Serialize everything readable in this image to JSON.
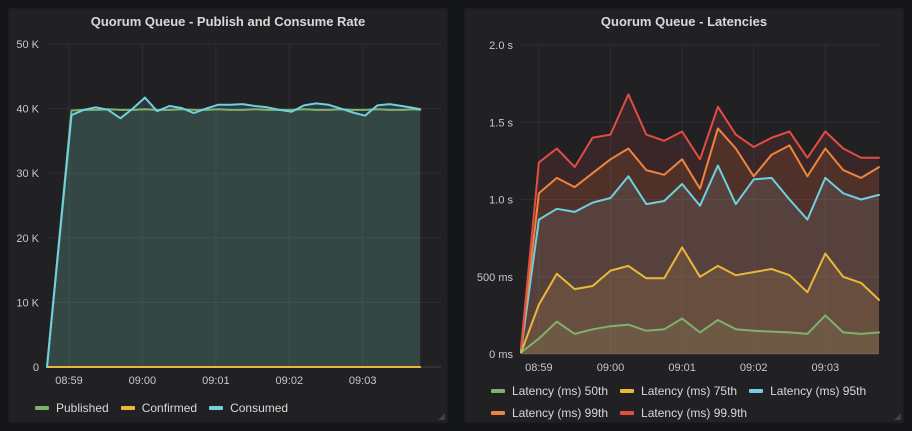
{
  "theme": {
    "page_bg": "#141619",
    "panel_bg": "#212124",
    "grid_color": "#2c2f33",
    "axis_line_color": "#3f4247",
    "axis_text_color": "#c7c8c9",
    "title_color": "#d8d9da",
    "legend_text_color": "#d8d9da"
  },
  "chart_data": [
    {
      "type": "area",
      "title": "Quorum Queue - Publish and Consume Rate",
      "legend_position": "bottom",
      "grid": true,
      "fill_opacity": 0.13,
      "x_axis_unit": "time",
      "x_seconds": [
        0,
        20,
        30,
        40,
        50,
        60,
        70,
        80,
        90,
        100,
        110,
        120,
        130,
        140,
        150,
        160,
        170,
        180,
        190,
        200,
        210,
        220,
        230,
        240,
        250,
        260,
        270,
        280,
        290,
        300,
        305
      ],
      "x_max": 322,
      "x_ticks": [
        {
          "t": 18,
          "label": "08:59"
        },
        {
          "t": 78,
          "label": "09:00"
        },
        {
          "t": 138,
          "label": "09:01"
        },
        {
          "t": 198,
          "label": "09:02"
        },
        {
          "t": 258,
          "label": "09:03"
        }
      ],
      "ylim": [
        0,
        50000
      ],
      "y_ticks": [
        {
          "v": 0,
          "label": "0"
        },
        {
          "v": 10000,
          "label": "10 K"
        },
        {
          "v": 20000,
          "label": "20 K"
        },
        {
          "v": 30000,
          "label": "30 K"
        },
        {
          "v": 40000,
          "label": "40 K"
        },
        {
          "v": 50000,
          "label": "50 K"
        }
      ],
      "series": [
        {
          "name": "Published",
          "color": "#7EB26D",
          "values": [
            0,
            39700,
            39800,
            39800,
            39900,
            39800,
            39800,
            39900,
            39800,
            39800,
            39900,
            39800,
            39800,
            39900,
            39800,
            39800,
            39900,
            39800,
            39800,
            39800,
            39900,
            39800,
            39800,
            39900,
            39800,
            39800,
            39900,
            39800,
            39800,
            39900,
            39800
          ]
        },
        {
          "name": "Confirmed",
          "color": "#EAB839",
          "values": [
            0,
            0,
            0,
            0,
            0,
            0,
            0,
            0,
            0,
            0,
            0,
            0,
            0,
            0,
            0,
            0,
            0,
            0,
            0,
            0,
            0,
            0,
            0,
            0,
            0,
            0,
            0,
            0,
            0,
            0,
            0
          ]
        },
        {
          "name": "Consumed",
          "color": "#6ED0E0",
          "values": [
            0,
            39000,
            39800,
            40200,
            39800,
            38500,
            40000,
            41700,
            39600,
            40400,
            40100,
            39300,
            40000,
            40600,
            40600,
            40700,
            40400,
            40200,
            39800,
            39500,
            40500,
            40800,
            40600,
            40000,
            39400,
            38900,
            40500,
            40700,
            40400,
            40100,
            39900
          ]
        }
      ]
    },
    {
      "type": "area",
      "title": "Quorum Queue - Latencies",
      "legend_position": "bottom",
      "grid": true,
      "fill_opacity": 0.13,
      "x_axis_unit": "time",
      "x_seconds": [
        0,
        15,
        30,
        45,
        60,
        75,
        90,
        105,
        120,
        135,
        150,
        165,
        180,
        195,
        210,
        225,
        240,
        255,
        270,
        285,
        300
      ],
      "x_max": 300,
      "x_ticks": [
        {
          "t": 15,
          "label": "08:59"
        },
        {
          "t": 75,
          "label": "09:00"
        },
        {
          "t": 135,
          "label": "09:01"
        },
        {
          "t": 195,
          "label": "09:02"
        },
        {
          "t": 255,
          "label": "09:03"
        }
      ],
      "ylim": [
        0,
        2000
      ],
      "y_ticks": [
        {
          "v": 0,
          "label": "0 ms"
        },
        {
          "v": 500,
          "label": "500 ms"
        },
        {
          "v": 1000,
          "label": "1.0 s"
        },
        {
          "v": 1500,
          "label": "1.5 s"
        },
        {
          "v": 2000,
          "label": "2.0 s"
        }
      ],
      "series": [
        {
          "name": "Latency (ms) 50th",
          "color": "#7EB26D",
          "values": [
            10,
            100,
            210,
            130,
            160,
            180,
            190,
            150,
            160,
            230,
            140,
            220,
            160,
            150,
            145,
            140,
            130,
            250,
            140,
            130,
            140
          ]
        },
        {
          "name": "Latency (ms) 75th",
          "color": "#EAB839",
          "values": [
            10,
            320,
            520,
            420,
            440,
            540,
            570,
            490,
            490,
            690,
            500,
            570,
            510,
            530,
            550,
            510,
            400,
            650,
            500,
            460,
            350
          ]
        },
        {
          "name": "Latency (ms) 95th",
          "color": "#6ED0E0",
          "values": [
            20,
            870,
            940,
            920,
            980,
            1010,
            1150,
            970,
            990,
            1100,
            960,
            1220,
            970,
            1130,
            1140,
            1000,
            870,
            1140,
            1040,
            1000,
            1030
          ]
        },
        {
          "name": "Latency (ms) 99th",
          "color": "#EF843C",
          "values": [
            30,
            1040,
            1140,
            1080,
            1170,
            1260,
            1330,
            1190,
            1160,
            1260,
            1070,
            1460,
            1330,
            1150,
            1290,
            1350,
            1150,
            1330,
            1190,
            1140,
            1210
          ]
        },
        {
          "name": "Latency (ms) 99.9th",
          "color": "#E24D42",
          "values": [
            40,
            1240,
            1330,
            1210,
            1400,
            1420,
            1680,
            1420,
            1380,
            1440,
            1260,
            1600,
            1420,
            1340,
            1400,
            1440,
            1270,
            1440,
            1330,
            1270,
            1270
          ]
        }
      ]
    }
  ]
}
